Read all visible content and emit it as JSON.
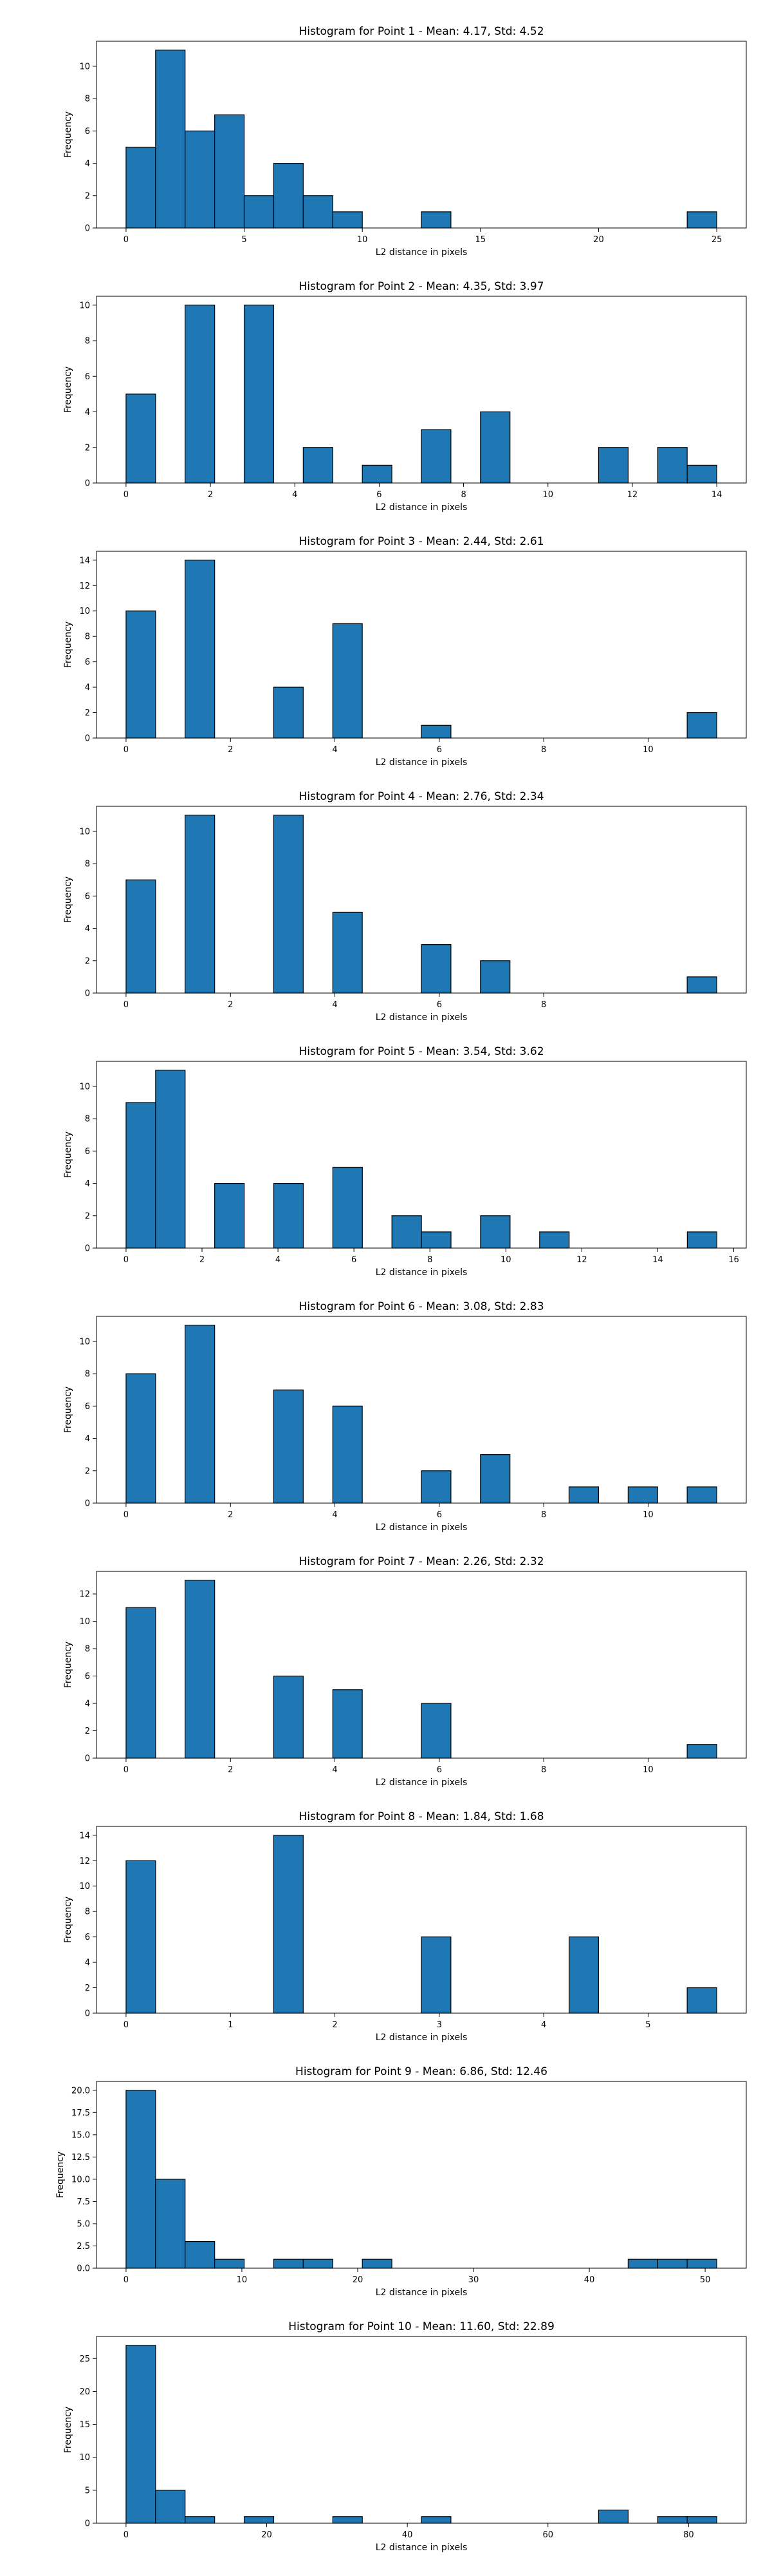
{
  "chart_data": [
    {
      "type": "histogram",
      "title": "Histogram for Point 1 - Mean: 4.17, Std: 4.52",
      "xlabel": "L2 distance in pixels",
      "ylabel": "Frequency",
      "bins": [
        0.0,
        1.25,
        2.5,
        3.75,
        5.0,
        6.25,
        7.5,
        8.75,
        10.0,
        11.25,
        12.5,
        13.75,
        15.0,
        16.25,
        17.5,
        18.75,
        20.0,
        21.25,
        22.5,
        23.75,
        25.0
      ],
      "counts": [
        5,
        11,
        6,
        7,
        2,
        4,
        2,
        1,
        0,
        0,
        1,
        0,
        0,
        0,
        0,
        0,
        0,
        0,
        0,
        1
      ],
      "xlim": [
        -1.25,
        26.25
      ],
      "ylim": [
        0,
        11.55
      ],
      "xticks": [
        0,
        5,
        10,
        15,
        20,
        25
      ],
      "xtick_labels": [
        "0",
        "5",
        "10",
        "15",
        "20",
        "25"
      ],
      "yticks": [
        0,
        2,
        4,
        6,
        8,
        10
      ],
      "ytick_labels": [
        "0",
        "2",
        "4",
        "6",
        "8",
        "10"
      ]
    },
    {
      "type": "histogram",
      "title": "Histogram for Point 2 - Mean: 4.35, Std: 3.97",
      "xlabel": "L2 distance in pixels",
      "ylabel": "Frequency",
      "bins": [
        0.0,
        0.7,
        1.4,
        2.1,
        2.8,
        3.5,
        4.2,
        4.9,
        5.6,
        6.3,
        7.0,
        7.7,
        8.4,
        9.1,
        9.8,
        10.5,
        11.2,
        11.9,
        12.6,
        13.3,
        14.0
      ],
      "counts": [
        5,
        0,
        10,
        0,
        10,
        0,
        2,
        0,
        1,
        0,
        3,
        0,
        4,
        0,
        0,
        0,
        2,
        0,
        2,
        1
      ],
      "xlim": [
        -0.7,
        14.7
      ],
      "ylim": [
        0,
        10.5
      ],
      "xticks": [
        0,
        2,
        4,
        6,
        8,
        10,
        12,
        14
      ],
      "xtick_labels": [
        "0",
        "2",
        "4",
        "6",
        "8",
        "10",
        "12",
        "14"
      ],
      "yticks": [
        0,
        2,
        4,
        6,
        8,
        10
      ],
      "ytick_labels": [
        "0",
        "2",
        "4",
        "6",
        "8",
        "10"
      ]
    },
    {
      "type": "histogram",
      "title": "Histogram for Point 3 - Mean: 2.44, Std: 2.61",
      "xlabel": "L2 distance in pixels",
      "ylabel": "Frequency",
      "bins": [
        0.0,
        0.566,
        1.131,
        1.697,
        2.263,
        2.828,
        3.394,
        3.96,
        4.525,
        5.091,
        5.657,
        6.223,
        6.788,
        7.354,
        7.92,
        8.485,
        9.051,
        9.617,
        10.182,
        10.748,
        11.314
      ],
      "counts": [
        10,
        0,
        14,
        0,
        0,
        4,
        0,
        9,
        0,
        0,
        1,
        0,
        0,
        0,
        0,
        0,
        0,
        0,
        0,
        2
      ],
      "xlim": [
        -0.566,
        11.88
      ],
      "ylim": [
        0,
        14.7
      ],
      "xticks": [
        0,
        2,
        4,
        6,
        8,
        10
      ],
      "xtick_labels": [
        "0",
        "2",
        "4",
        "6",
        "8",
        "10"
      ],
      "yticks": [
        0,
        2,
        4,
        6,
        8,
        10,
        12,
        14
      ],
      "ytick_labels": [
        "0",
        "2",
        "4",
        "6",
        "8",
        "10",
        "12",
        "14"
      ]
    },
    {
      "type": "histogram",
      "title": "Histogram for Point 4 - Mean: 2.76, Std: 2.34",
      "xlabel": "L2 distance in pixels",
      "ylabel": "Frequency",
      "bins": [
        0.0,
        0.566,
        1.131,
        1.697,
        2.263,
        2.828,
        3.394,
        3.96,
        4.525,
        5.091,
        5.657,
        6.223,
        6.788,
        7.354,
        7.92,
        8.485,
        9.051,
        9.617,
        10.182,
        10.748,
        11.314
      ],
      "counts": [
        7,
        0,
        11,
        0,
        0,
        11,
        0,
        5,
        0,
        0,
        3,
        0,
        2,
        0,
        0,
        0,
        0,
        0,
        0,
        1
      ],
      "xlim": [
        -0.566,
        11.88
      ],
      "ylim": [
        0,
        11.55
      ],
      "xticks": [
        0,
        2,
        4,
        6,
        8
      ],
      "xtick_labels": [
        "0",
        "2",
        "4",
        "6",
        "8"
      ],
      "yticks": [
        0,
        2,
        4,
        6,
        8,
        10
      ],
      "ytick_labels": [
        "0",
        "2",
        "4",
        "6",
        "8",
        "10"
      ]
    },
    {
      "type": "histogram",
      "title": "Histogram for Point 5 - Mean: 3.54, Std: 3.62",
      "xlabel": "L2 distance in pixels",
      "ylabel": "Frequency",
      "bins": [
        0.0,
        0.778,
        1.556,
        2.333,
        3.111,
        3.889,
        4.667,
        5.444,
        6.222,
        7.0,
        7.778,
        8.556,
        9.333,
        10.111,
        10.889,
        11.667,
        12.444,
        13.222,
        14.0,
        14.778,
        15.556
      ],
      "counts": [
        9,
        11,
        0,
        4,
        0,
        4,
        0,
        5,
        0,
        2,
        1,
        0,
        2,
        0,
        1,
        0,
        0,
        0,
        0,
        1
      ],
      "xlim": [
        -0.778,
        16.33
      ],
      "ylim": [
        0,
        11.55
      ],
      "xticks": [
        0,
        2,
        4,
        6,
        8,
        10,
        12,
        14,
        16
      ],
      "xtick_labels": [
        "0",
        "2",
        "4",
        "6",
        "8",
        "10",
        "12",
        "14",
        "16"
      ],
      "yticks": [
        0,
        2,
        4,
        6,
        8,
        10
      ],
      "ytick_labels": [
        "0",
        "2",
        "4",
        "6",
        "8",
        "10"
      ]
    },
    {
      "type": "histogram",
      "title": "Histogram for Point 6 - Mean: 3.08, Std: 2.83",
      "xlabel": "L2 distance in pixels",
      "ylabel": "Frequency",
      "bins": [
        0.0,
        0.566,
        1.131,
        1.697,
        2.263,
        2.828,
        3.394,
        3.96,
        4.525,
        5.091,
        5.657,
        6.223,
        6.788,
        7.354,
        7.92,
        8.485,
        9.051,
        9.617,
        10.182,
        10.748,
        11.314
      ],
      "counts": [
        8,
        0,
        11,
        0,
        0,
        7,
        0,
        6,
        0,
        0,
        2,
        0,
        3,
        0,
        0,
        1,
        0,
        1,
        0,
        1
      ],
      "xlim": [
        -0.566,
        11.88
      ],
      "ylim": [
        0,
        11.55
      ],
      "xticks": [
        0,
        2,
        4,
        6,
        8,
        10
      ],
      "xtick_labels": [
        "0",
        "2",
        "4",
        "6",
        "8",
        "10"
      ],
      "yticks": [
        0,
        2,
        4,
        6,
        8,
        10
      ],
      "ytick_labels": [
        "0",
        "2",
        "4",
        "6",
        "8",
        "10"
      ]
    },
    {
      "type": "histogram",
      "title": "Histogram for Point 7 - Mean: 2.26, Std: 2.32",
      "xlabel": "L2 distance in pixels",
      "ylabel": "Frequency",
      "bins": [
        0.0,
        0.566,
        1.131,
        1.697,
        2.263,
        2.828,
        3.394,
        3.96,
        4.525,
        5.091,
        5.657,
        6.223,
        6.788,
        7.354,
        7.92,
        8.485,
        9.051,
        9.617,
        10.182,
        10.748,
        11.314
      ],
      "counts": [
        11,
        0,
        13,
        0,
        0,
        6,
        0,
        5,
        0,
        0,
        4,
        0,
        0,
        0,
        0,
        0,
        0,
        0,
        0,
        1
      ],
      "xlim": [
        -0.566,
        11.88
      ],
      "ylim": [
        0,
        13.65
      ],
      "xticks": [
        0,
        2,
        4,
        6,
        8,
        10
      ],
      "xtick_labels": [
        "0",
        "2",
        "4",
        "6",
        "8",
        "10"
      ],
      "yticks": [
        0,
        2,
        4,
        6,
        8,
        10,
        12
      ],
      "ytick_labels": [
        "0",
        "2",
        "4",
        "6",
        "8",
        "10",
        "12"
      ]
    },
    {
      "type": "histogram",
      "title": "Histogram for Point 8 - Mean: 1.84, Std: 1.68",
      "xlabel": "L2 distance in pixels",
      "ylabel": "Frequency",
      "bins": [
        0.0,
        0.283,
        0.566,
        0.849,
        1.131,
        1.414,
        1.697,
        1.98,
        2.263,
        2.546,
        2.828,
        3.111,
        3.394,
        3.677,
        3.96,
        4.243,
        4.525,
        4.808,
        5.091,
        5.374,
        5.657
      ],
      "counts": [
        12,
        0,
        0,
        0,
        0,
        14,
        0,
        0,
        0,
        0,
        6,
        0,
        0,
        0,
        0,
        6,
        0,
        0,
        0,
        2
      ],
      "xlim": [
        -0.283,
        5.94
      ],
      "ylim": [
        0,
        14.7
      ],
      "xticks": [
        0,
        1,
        2,
        3,
        4,
        5
      ],
      "xtick_labels": [
        "0",
        "1",
        "2",
        "3",
        "4",
        "5"
      ],
      "yticks": [
        0,
        2,
        4,
        6,
        8,
        10,
        12,
        14
      ],
      "ytick_labels": [
        "0",
        "2",
        "4",
        "6",
        "8",
        "10",
        "12",
        "14"
      ]
    },
    {
      "type": "histogram",
      "title": "Histogram for Point 9 - Mean: 6.86, Std: 12.46",
      "xlabel": "L2 distance in pixels",
      "ylabel": "Frequency",
      "bins": [
        0.0,
        2.55,
        5.1,
        7.65,
        10.2,
        12.75,
        15.3,
        17.85,
        20.4,
        22.95,
        25.5,
        28.05,
        30.6,
        33.15,
        35.7,
        38.25,
        40.8,
        43.35,
        45.9,
        48.45,
        51.0
      ],
      "counts": [
        20,
        10,
        3,
        1,
        0,
        1,
        1,
        0,
        1,
        0,
        0,
        0,
        0,
        0,
        0,
        0,
        0,
        1,
        1,
        1
      ],
      "xlim": [
        -2.55,
        53.55
      ],
      "ylim": [
        0,
        21.0
      ],
      "xticks": [
        0,
        10,
        20,
        30,
        40,
        50
      ],
      "xtick_labels": [
        "0",
        "10",
        "20",
        "30",
        "40",
        "50"
      ],
      "yticks": [
        0,
        2.5,
        5,
        7.5,
        10,
        12.5,
        15,
        17.5,
        20
      ],
      "ytick_labels": [
        "0.0",
        "2.5",
        "5.0",
        "7.5",
        "10.0",
        "12.5",
        "15.0",
        "17.5",
        "20.0"
      ]
    },
    {
      "type": "histogram",
      "title": "Histogram for Point 10 - Mean: 11.60, Std: 22.89",
      "xlabel": "L2 distance in pixels",
      "ylabel": "Frequency",
      "bins": [
        0.0,
        4.2,
        8.4,
        12.6,
        16.8,
        21.0,
        25.2,
        29.4,
        33.6,
        37.8,
        42.0,
        46.2,
        50.4,
        54.6,
        58.8,
        63.0,
        67.2,
        71.4,
        75.6,
        79.8,
        84.0
      ],
      "counts": [
        27,
        5,
        1,
        0,
        1,
        0,
        0,
        1,
        0,
        0,
        1,
        0,
        0,
        0,
        0,
        0,
        2,
        0,
        1,
        1
      ],
      "xlim": [
        -4.2,
        88.2
      ],
      "ylim": [
        0,
        28.35
      ],
      "xticks": [
        0,
        20,
        40,
        60,
        80
      ],
      "xtick_labels": [
        "0",
        "20",
        "40",
        "60",
        "80"
      ],
      "yticks": [
        0,
        5,
        10,
        15,
        20,
        25
      ],
      "ytick_labels": [
        "0",
        "5",
        "10",
        "15",
        "20",
        "25"
      ]
    }
  ]
}
